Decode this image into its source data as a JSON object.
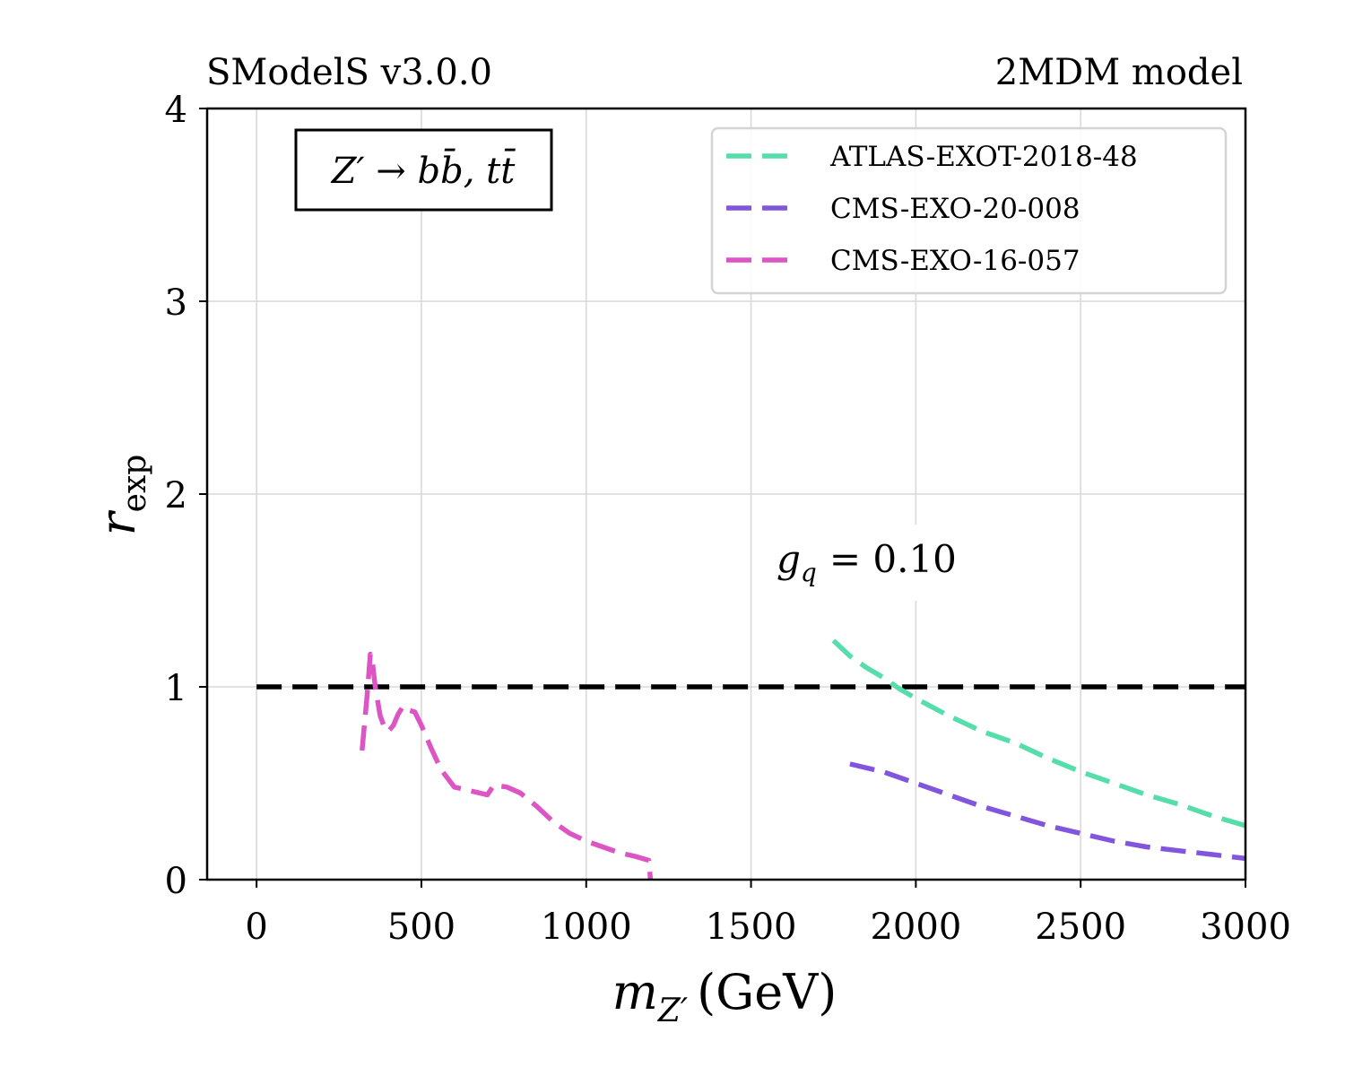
{
  "header": {
    "left": "SModelS v3.0.0",
    "right": "2MDM model"
  },
  "chart_data": {
    "type": "line",
    "title": "",
    "xlabel": "m_{Z'} (GeV)",
    "ylabel": "r_exp",
    "xlim": [
      -150,
      3000
    ],
    "ylim": [
      0,
      4
    ],
    "xticks": [
      0,
      500,
      1000,
      1500,
      2000,
      2500,
      3000
    ],
    "yticks": [
      0,
      1,
      2,
      3,
      4
    ],
    "grid": true,
    "annotation_box": "Z′ → bb̄, tt̄",
    "annotation_coupling": {
      "symbol": "g",
      "subscript": "q",
      "text": "= 0.10"
    },
    "reference_line": {
      "y": 1.0,
      "x_range": [
        0,
        3000
      ],
      "style": "dashed",
      "color": "#000000"
    },
    "legend": {
      "placement": "top-right"
    },
    "series": [
      {
        "name": "ATLAS-EXOT-2018-48",
        "color": "#55ddaa",
        "style": "dashed",
        "x": [
          1750,
          1800,
          1850,
          1900,
          1950,
          2000,
          2100,
          2200,
          2300,
          2400,
          2500,
          2600,
          2700,
          2800,
          2900,
          3000
        ],
        "y": [
          1.24,
          1.16,
          1.1,
          1.05,
          0.99,
          0.94,
          0.85,
          0.77,
          0.71,
          0.63,
          0.56,
          0.5,
          0.44,
          0.39,
          0.33,
          0.28
        ]
      },
      {
        "name": "CMS-EXO-20-008",
        "color": "#8255dd",
        "style": "dashed",
        "x": [
          1800,
          1850,
          1900,
          2000,
          2100,
          2200,
          2300,
          2400,
          2500,
          2600,
          2700,
          2800,
          2900,
          3000
        ],
        "y": [
          0.6,
          0.58,
          0.56,
          0.5,
          0.44,
          0.38,
          0.33,
          0.28,
          0.24,
          0.2,
          0.17,
          0.15,
          0.13,
          0.11
        ]
      },
      {
        "name": "CMS-EXO-16-057",
        "color": "#dd55c4",
        "style": "dashed",
        "x": [
          320,
          335,
          345,
          350,
          360,
          375,
          390,
          400,
          415,
          430,
          445,
          460,
          480,
          500,
          530,
          560,
          600,
          650,
          700,
          720,
          760,
          800,
          850,
          900,
          950,
          1000,
          1050,
          1100,
          1150,
          1190,
          1195
        ],
        "y": [
          0.67,
          0.95,
          1.17,
          1.15,
          1.0,
          0.85,
          0.78,
          0.77,
          0.8,
          0.86,
          0.9,
          0.88,
          0.87,
          0.8,
          0.68,
          0.57,
          0.48,
          0.46,
          0.44,
          0.49,
          0.48,
          0.45,
          0.38,
          0.3,
          0.24,
          0.2,
          0.17,
          0.14,
          0.12,
          0.1,
          0.0
        ]
      }
    ]
  }
}
